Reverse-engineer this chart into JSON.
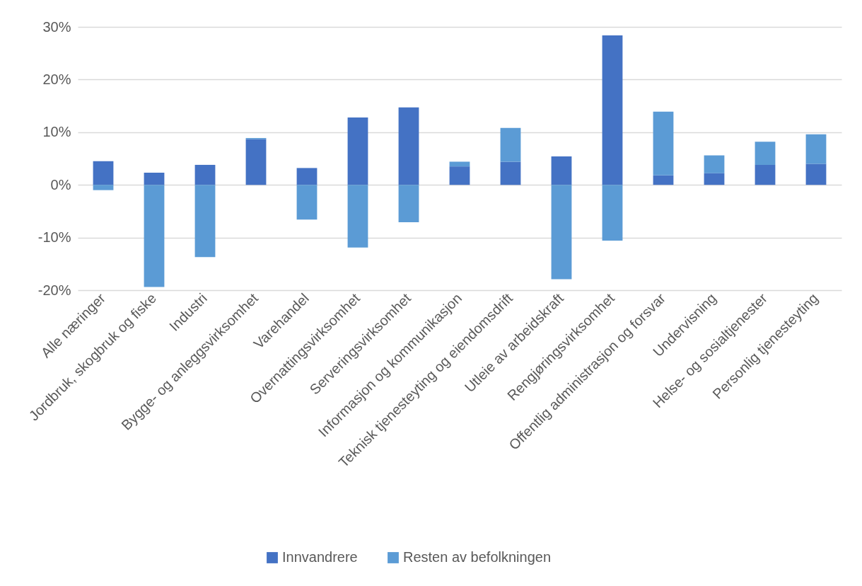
{
  "chart_data": {
    "type": "bar",
    "stacked": true,
    "categories": [
      "Alle næringer",
      "Jordbruk, skogbruk og fiske",
      "Industri",
      "Bygge- og anleggsvirksomhet",
      "Varehandel",
      "Overnattingsvirksomhet",
      "Serveringsvirksomhet",
      "Informasjon og kommunikasjon",
      "Teknisk tjenesteyting og eiendomsdrift",
      "Utleie av arbeidskraft",
      "Rengjøringsvirksomhet",
      "Offentlig administrasjon og forsvar",
      "Undervisning",
      "Helse- og sosialtjenester",
      "Personlig tjenesteyting"
    ],
    "series": [
      {
        "name": "Innvandrere",
        "color": "#4472c4",
        "values": [
          4.5,
          2.3,
          3.8,
          8.7,
          3.2,
          12.8,
          14.7,
          3.5,
          4.4,
          5.4,
          28.4,
          1.8,
          2.2,
          3.8,
          4.0
        ]
      },
      {
        "name": "Resten av befolkningen",
        "color": "#5b9bd5",
        "values": [
          -1.0,
          -19.4,
          -13.7,
          0.2,
          -6.6,
          -11.9,
          -7.1,
          0.9,
          6.4,
          -17.9,
          -10.6,
          12.1,
          3.4,
          4.4,
          5.6
        ]
      }
    ],
    "ylim": [
      -20,
      30
    ],
    "yticks": [
      {
        "value": -20,
        "label": "-20%"
      },
      {
        "value": -10,
        "label": "-10%"
      },
      {
        "value": 0,
        "label": "0%"
      },
      {
        "value": 10,
        "label": "10%"
      },
      {
        "value": 20,
        "label": "20%"
      },
      {
        "value": 30,
        "label": "30%"
      }
    ],
    "grid": "y",
    "legend": "bottom"
  }
}
